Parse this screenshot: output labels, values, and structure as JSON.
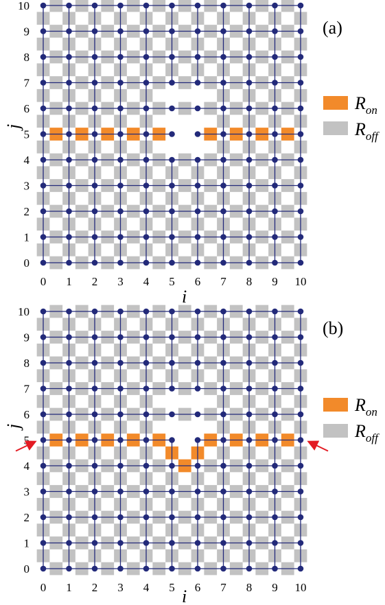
{
  "colors": {
    "node": "#232a7a",
    "wire": "#232a7a",
    "r_on": "#f28a2a",
    "r_off": "#c2c2c2",
    "arrow": "#e31b23"
  },
  "legend": {
    "on_symbol": "R",
    "on_sub": "on",
    "off_symbol": "R",
    "off_sub": "off"
  },
  "panels": [
    {
      "label": "(a)",
      "xlabel": "i",
      "ylabel": "j",
      "x_ticks": [
        "0",
        "1",
        "2",
        "3",
        "4",
        "5",
        "6",
        "7",
        "8",
        "9",
        "10"
      ],
      "y_ticks": [
        "0",
        "1",
        "2",
        "3",
        "4",
        "5",
        "6",
        "7",
        "8",
        "9",
        "10"
      ],
      "grid_size": 10,
      "on_edges": [
        {
          "i": 0,
          "j": 5,
          "dir": "h"
        },
        {
          "i": 1,
          "j": 5,
          "dir": "h"
        },
        {
          "i": 2,
          "j": 5,
          "dir": "h"
        },
        {
          "i": 3,
          "j": 5,
          "dir": "h"
        },
        {
          "i": 4,
          "j": 5,
          "dir": "h"
        },
        {
          "i": 6,
          "j": 5,
          "dir": "h"
        },
        {
          "i": 7,
          "j": 5,
          "dir": "h"
        },
        {
          "i": 8,
          "j": 5,
          "dir": "h"
        },
        {
          "i": 9,
          "j": 5,
          "dir": "h"
        }
      ],
      "removed_edges": [
        {
          "i": 5,
          "j": 5,
          "dir": "h"
        },
        {
          "i": 5,
          "j": 4,
          "dir": "v"
        },
        {
          "i": 5,
          "j": 5,
          "dir": "v"
        },
        {
          "i": 5,
          "j": 6,
          "dir": "v"
        },
        {
          "i": 6,
          "j": 4,
          "dir": "v"
        },
        {
          "i": 6,
          "j": 5,
          "dir": "v"
        },
        {
          "i": 6,
          "j": 6,
          "dir": "v"
        }
      ],
      "arrows": []
    },
    {
      "label": "(b)",
      "xlabel": "i",
      "ylabel": "j",
      "x_ticks": [
        "0",
        "1",
        "2",
        "3",
        "4",
        "5",
        "6",
        "7",
        "8",
        "9",
        "10"
      ],
      "y_ticks": [
        "0",
        "1",
        "2",
        "3",
        "4",
        "5",
        "6",
        "7",
        "8",
        "9",
        "10"
      ],
      "grid_size": 10,
      "on_edges": [
        {
          "i": 0,
          "j": 5,
          "dir": "h"
        },
        {
          "i": 1,
          "j": 5,
          "dir": "h"
        },
        {
          "i": 2,
          "j": 5,
          "dir": "h"
        },
        {
          "i": 3,
          "j": 5,
          "dir": "h"
        },
        {
          "i": 4,
          "j": 5,
          "dir": "h"
        },
        {
          "i": 6,
          "j": 5,
          "dir": "h"
        },
        {
          "i": 7,
          "j": 5,
          "dir": "h"
        },
        {
          "i": 8,
          "j": 5,
          "dir": "h"
        },
        {
          "i": 9,
          "j": 5,
          "dir": "h"
        },
        {
          "i": 5,
          "j": 4,
          "dir": "v"
        },
        {
          "i": 6,
          "j": 4,
          "dir": "v"
        },
        {
          "i": 5,
          "j": 4,
          "dir": "h"
        }
      ],
      "removed_edges": [
        {
          "i": 5,
          "j": 5,
          "dir": "h"
        },
        {
          "i": 5,
          "j": 5,
          "dir": "v"
        },
        {
          "i": 5,
          "j": 6,
          "dir": "v"
        },
        {
          "i": 6,
          "j": 5,
          "dir": "v"
        },
        {
          "i": 6,
          "j": 6,
          "dir": "v"
        }
      ],
      "arrows": [
        {
          "side": "left",
          "j": 5
        },
        {
          "side": "right",
          "j": 5
        }
      ]
    }
  ]
}
